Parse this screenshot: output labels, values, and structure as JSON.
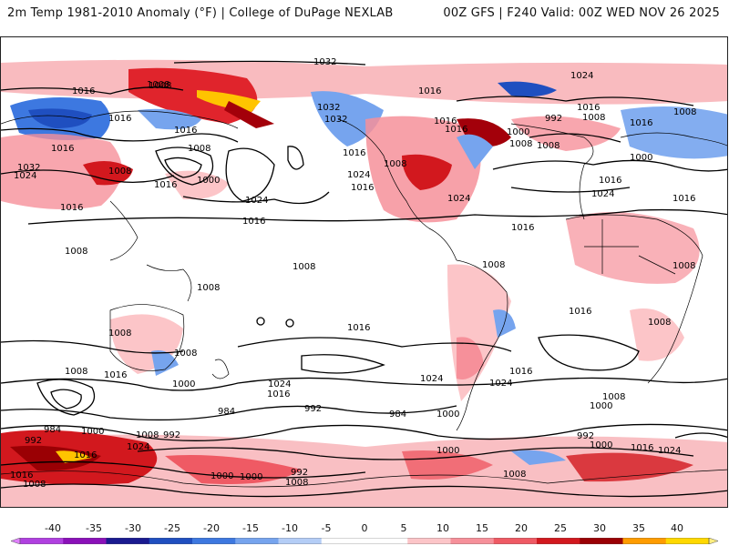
{
  "header": {
    "title_left": "2m Temp 1981-2010 Anomaly (°F) | College of DuPage NEXLAB",
    "title_right": "00Z GFS | F240 Valid: 00Z WED NOV 26 2025"
  },
  "colorbar": {
    "labels": [
      "-40",
      "-35",
      "-30",
      "-25",
      "-20",
      "-15",
      "-10",
      "-5",
      "0",
      "5",
      "10",
      "15",
      "20",
      "25",
      "30",
      "35",
      "40"
    ],
    "colors": [
      "#e080ff",
      "#b040e0",
      "#8a10b8",
      "#1a1a90",
      "#1f4fc0",
      "#3d78e0",
      "#76a4ee",
      "#b4cdf6",
      "#ffffff",
      "#ffffff",
      "#fcc5c8",
      "#f6909a",
      "#ef5a64",
      "#d2181e",
      "#9a0004",
      "#ff9c00",
      "#ffd800",
      "#ffee80"
    ]
  },
  "isobar_labels": [
    "1016",
    "1008",
    "1032",
    "1024",
    "1016",
    "1016",
    "1016",
    "1008",
    "1032",
    "1024",
    "1008",
    "1016",
    "1016",
    "1008",
    "1000",
    "1016",
    "1024",
    "1016",
    "1008",
    "1008",
    "1032",
    "1032",
    "1024",
    "1016",
    "1016",
    "1024",
    "1016",
    "1016",
    "1008",
    "1016",
    "1016",
    "992",
    "1008",
    "1000",
    "1008",
    "1016",
    "1000",
    "1016",
    "1024",
    "1016",
    "1008",
    "1008",
    "1008",
    "1008",
    "1016",
    "1008",
    "1008",
    "1016",
    "1008",
    "1016",
    "1024",
    "1000",
    "1024",
    "1016",
    "1008",
    "1008",
    "1016",
    "1024",
    "984",
    "992",
    "984",
    "1000",
    "1000",
    "1008",
    "1000",
    "992",
    "984",
    "1000",
    "992",
    "1008",
    "1016",
    "1024",
    "1016",
    "1008",
    "992",
    "1000",
    "1016",
    "1024",
    "1000",
    "1000",
    "992",
    "1008",
    "1008"
  ]
}
